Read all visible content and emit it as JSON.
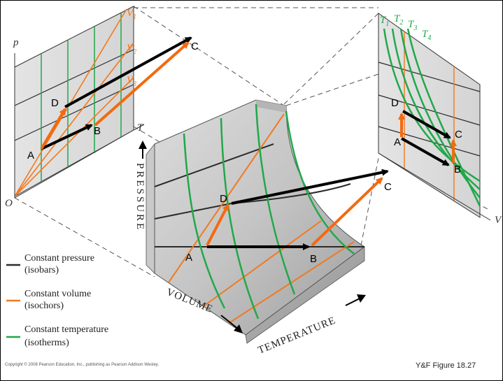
{
  "pt_diagram": {
    "axis_p": "p",
    "axis_T": "T",
    "origin": "O",
    "v1": "V",
    "v1_sub": "1",
    "v2": "V",
    "v2_sub": "2",
    "v3": "V",
    "v3_sub": "3",
    "points": {
      "A": "A",
      "B": "B",
      "C": "C",
      "D": "D"
    }
  },
  "surface": {
    "axis_pressure": "PRESSURE",
    "axis_volume": "VOLUME",
    "axis_temperature": "TEMPERATURE",
    "points": {
      "A": "A",
      "B": "B",
      "C": "C",
      "D": "D"
    }
  },
  "pv_diagram": {
    "t1": "T",
    "t1_sub": "1",
    "t2": "T",
    "t2_sub": "2",
    "t3": "T",
    "t3_sub": "3",
    "t4": "T",
    "t4_sub": "4",
    "axis_v": "V",
    "points": {
      "A": "A",
      "B": "B",
      "C": "C",
      "D": "D"
    }
  },
  "legend": {
    "items": [
      {
        "line1": "Constant pressure",
        "line2": "(isobars)",
        "color": "#2b2b2b"
      },
      {
        "line1": "Constant volume",
        "line2": "(isochors)",
        "color": "#f07a20"
      },
      {
        "line1": "Constant temperature",
        "line2": "(isotherms)",
        "color": "#21a84a"
      }
    ]
  },
  "copyright": "Copyright © 2008 Pearson Education, Inc., publishing as Pearson Addison Wesley.",
  "figure_caption": "Y&F Figure 18.27",
  "colors": {
    "isobar": "#2b2b2b",
    "isochor": "#f07a20",
    "isotherm": "#21a84a",
    "arrow": "#000000",
    "process_arrow": "#f26a10"
  }
}
